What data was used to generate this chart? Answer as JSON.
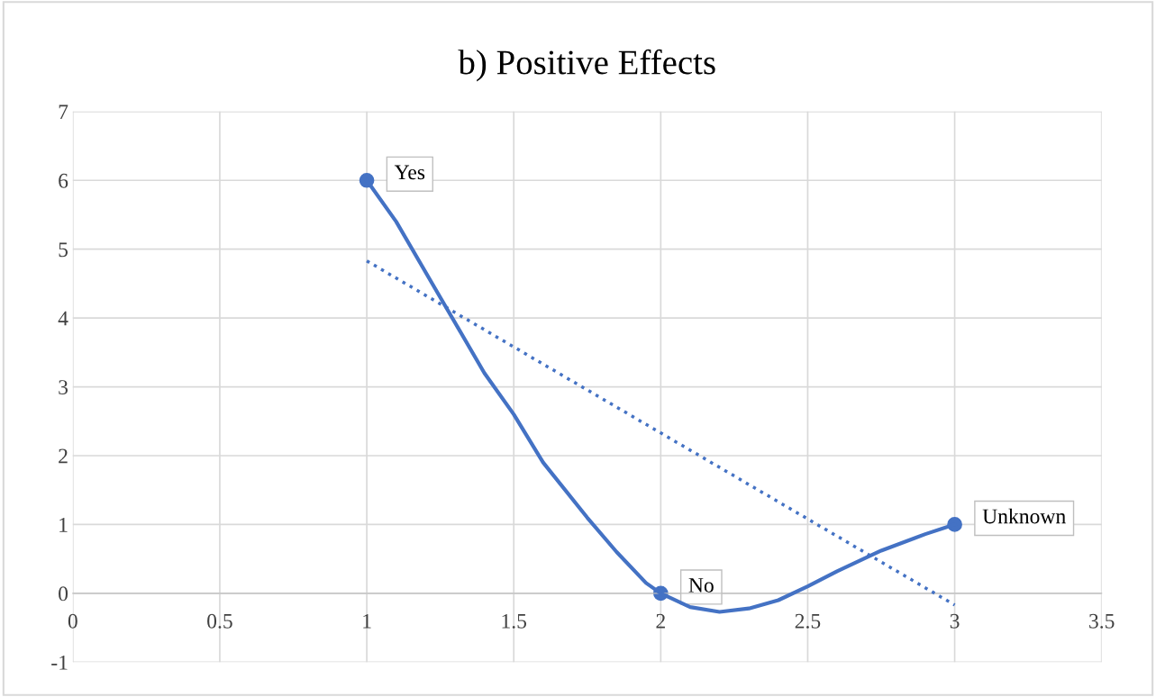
{
  "chart_data": {
    "type": "scatter",
    "title": "b) Positive Effects",
    "series": [
      {
        "type": "line",
        "color": "#4472c4",
        "x": [
          1,
          1.1,
          1.25,
          1.4,
          1.5,
          1.6,
          1.75,
          1.85,
          1.95,
          2,
          2.1,
          2.2,
          2.3,
          2.4,
          2.5,
          2.6,
          2.75,
          2.9,
          3
        ],
        "values": [
          6,
          5.4,
          4.3,
          3.2,
          2.6,
          1.9,
          1.1,
          0.6,
          0.15,
          0,
          -0.2,
          -0.27,
          -0.22,
          -0.1,
          0.1,
          0.32,
          0.62,
          0.86,
          1
        ],
        "marker": "none",
        "line_style": "solid"
      },
      {
        "color": "#4472c4",
        "x": [
          1,
          2,
          3
        ],
        "values": [
          6,
          0,
          1
        ],
        "marker": "circle"
      },
      {
        "type": "line",
        "color": "#4472c4",
        "x": [
          1,
          3
        ],
        "values": [
          4.83,
          -0.17
        ],
        "marker": "none",
        "line_style": "dotted"
      }
    ],
    "annotations": [
      {
        "text": "Yes",
        "x": 1,
        "y": 6
      },
      {
        "text": "No",
        "x": 2,
        "y": 0
      },
      {
        "text": "Unknown",
        "x": 3,
        "y": 1
      }
    ],
    "xlim": [
      0,
      3.5
    ],
    "xticks": [
      0,
      0.5,
      1,
      1.5,
      2,
      2.5,
      3,
      3.5
    ],
    "ylim": [
      -1,
      7
    ],
    "yticks": [
      -1,
      0,
      1,
      2,
      3,
      4,
      5,
      6,
      7
    ],
    "grid": true,
    "legend": false
  }
}
